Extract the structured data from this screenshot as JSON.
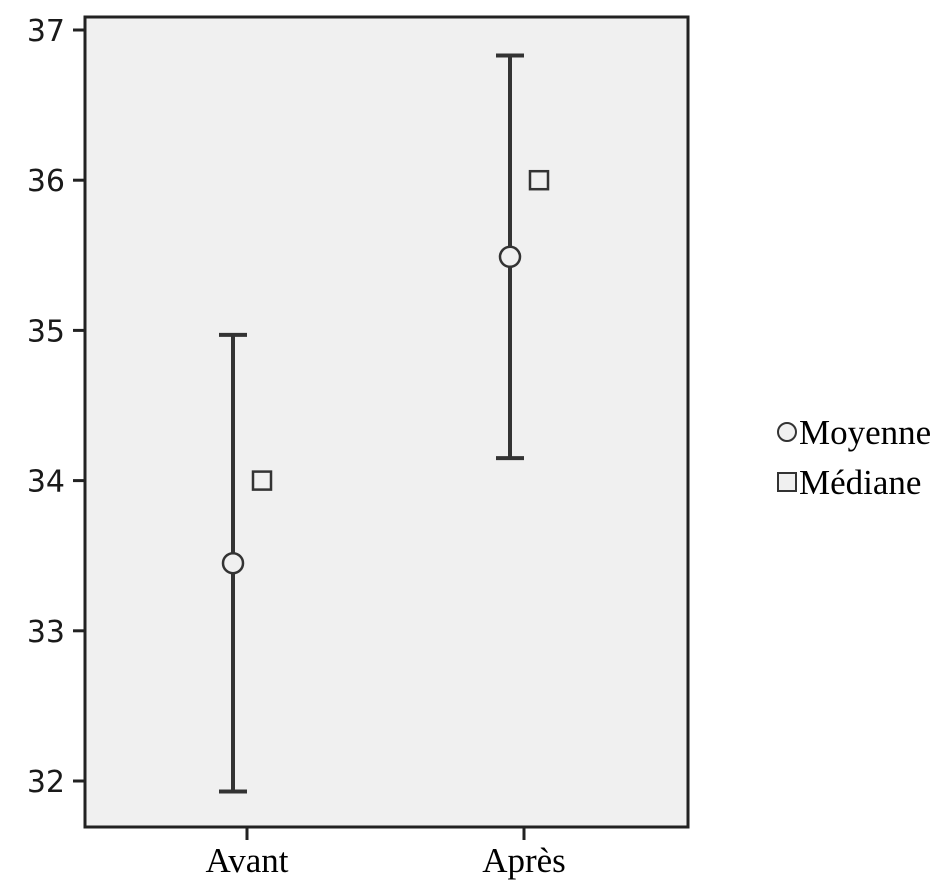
{
  "chart_data": {
    "type": "scatter",
    "title": "",
    "xlabel": "",
    "ylabel": "",
    "categories": [
      "Avant",
      "Après"
    ],
    "ylim": [
      31.7,
      37.1
    ],
    "yticks": [
      32,
      33,
      34,
      35,
      36,
      37
    ],
    "grid": false,
    "legend_position": "right",
    "colors": {
      "plot_background": "#f0f0f0",
      "axis": "#222222",
      "error_bar": "#333333",
      "marker_fill": "#f0f0f0",
      "marker_stroke": "#333333"
    },
    "error_bars": [
      {
        "category": "Avant",
        "low": 31.93,
        "high": 34.97
      },
      {
        "category": "Après",
        "low": 34.15,
        "high": 36.83
      }
    ],
    "series": [
      {
        "name": "Moyenne",
        "marker": "circle",
        "values": [
          33.45,
          35.49
        ]
      },
      {
        "name": "Médiane",
        "marker": "square",
        "values": [
          34.0,
          36.0
        ]
      }
    ]
  }
}
